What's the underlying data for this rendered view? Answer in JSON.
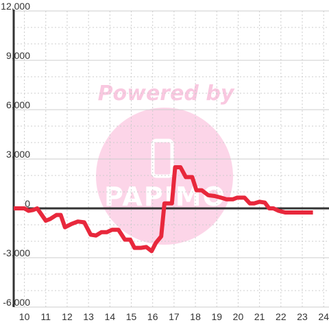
{
  "chart_data": {
    "type": "line",
    "title": "",
    "xlabel": "",
    "ylabel": "",
    "xlim": [
      9.5,
      24.25
    ],
    "ylim": [
      -6000,
      12000
    ],
    "x_ticks": [
      "10",
      "11",
      "12",
      "13",
      "14",
      "15",
      "16",
      "17",
      "18",
      "19",
      "20",
      "21",
      "22",
      "23",
      "24"
    ],
    "y_ticks": [
      "12,000",
      "9,000",
      "6,000",
      "3,000",
      "0",
      "-3,000",
      "-6,000"
    ],
    "grid": true,
    "series": [
      {
        "color": "#e8283c",
        "points": [
          [
            9.5,
            0
          ],
          [
            10.0,
            0
          ],
          [
            10.2,
            -150
          ],
          [
            10.4,
            -100
          ],
          [
            10.6,
            0
          ],
          [
            11.0,
            -750
          ],
          [
            11.2,
            -650
          ],
          [
            11.5,
            -400
          ],
          [
            11.7,
            -400
          ],
          [
            11.9,
            -1150
          ],
          [
            12.2,
            -950
          ],
          [
            12.5,
            -800
          ],
          [
            12.8,
            -850
          ],
          [
            13.1,
            -1600
          ],
          [
            13.35,
            -1650
          ],
          [
            13.6,
            -1450
          ],
          [
            13.85,
            -1450
          ],
          [
            14.1,
            -1300
          ],
          [
            14.4,
            -1300
          ],
          [
            14.7,
            -1900
          ],
          [
            14.95,
            -1900
          ],
          [
            15.15,
            -2400
          ],
          [
            15.45,
            -2400
          ],
          [
            15.7,
            -2350
          ],
          [
            15.95,
            -2600
          ],
          [
            16.15,
            -2100
          ],
          [
            16.4,
            -1700
          ],
          [
            16.55,
            300
          ],
          [
            16.7,
            300
          ],
          [
            16.9,
            300
          ],
          [
            17.05,
            2500
          ],
          [
            17.3,
            2500
          ],
          [
            17.55,
            1900
          ],
          [
            17.85,
            1900
          ],
          [
            18.05,
            1100
          ],
          [
            18.3,
            1100
          ],
          [
            18.6,
            800
          ],
          [
            18.9,
            750
          ],
          [
            19.2,
            650
          ],
          [
            19.45,
            550
          ],
          [
            19.75,
            550
          ],
          [
            19.95,
            650
          ],
          [
            20.3,
            650
          ],
          [
            20.55,
            300
          ],
          [
            20.75,
            300
          ],
          [
            21.0,
            400
          ],
          [
            21.25,
            350
          ],
          [
            21.45,
            0
          ],
          [
            21.65,
            0
          ],
          [
            21.9,
            -150
          ],
          [
            22.2,
            -250
          ],
          [
            22.5,
            -250
          ],
          [
            22.8,
            -250
          ],
          [
            23.1,
            -250
          ],
          [
            23.5,
            -250
          ]
        ]
      }
    ],
    "watermark": {
      "line1": "Powered by",
      "line2": "PAPIMO"
    },
    "colors": {
      "line": "#e8283c",
      "axis": "#333333",
      "grid": "#cccccc",
      "watermark": "#fcd5e8"
    }
  }
}
